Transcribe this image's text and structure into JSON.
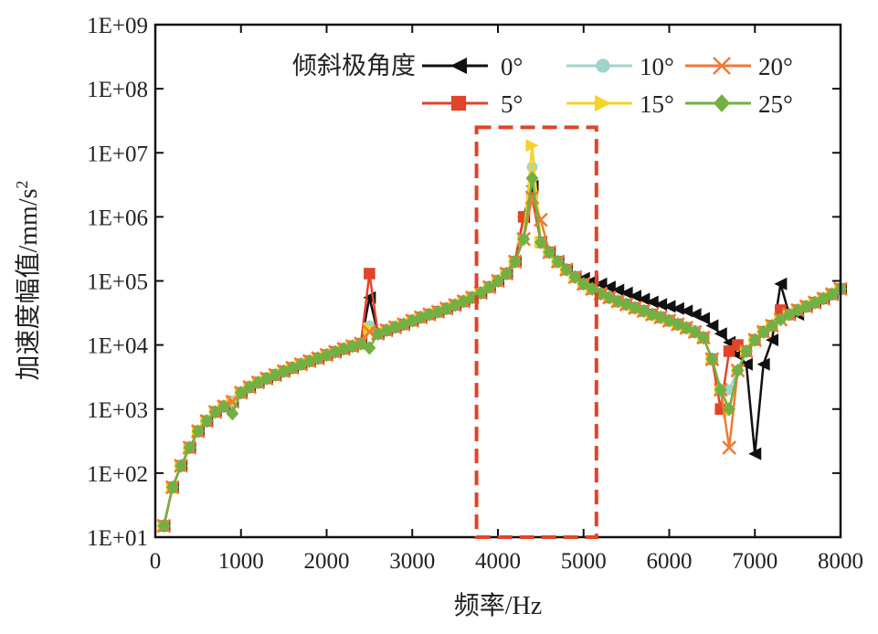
{
  "chart_data": {
    "type": "line",
    "xlabel": "频率/Hz",
    "ylabel": "加速度幅值/mm/s",
    "ylabel_sup": "2",
    "xlim": [
      0,
      8000
    ],
    "ylim": [
      10,
      1000000000
    ],
    "yscale": "log",
    "xticks": [
      "0",
      "1000",
      "2000",
      "3000",
      "4000",
      "5000",
      "6000",
      "7000",
      "8000"
    ],
    "xtick_values": [
      0,
      1000,
      2000,
      3000,
      4000,
      5000,
      6000,
      7000,
      8000
    ],
    "yticks": [
      "1E+01",
      "1E+02",
      "1E+03",
      "1E+04",
      "1E+05",
      "1E+06",
      "1E+07",
      "1E+08",
      "1E+09"
    ],
    "legend_title": "倾斜极角度",
    "legend_position": "top-right",
    "x_start": 100,
    "x_step": 100,
    "base": [
      15,
      60,
      130,
      250,
      450,
      650,
      900,
      1100,
      1300,
      1800,
      2200,
      2600,
      3000,
      3400,
      3900,
      4400,
      5000,
      5600,
      6200,
      7000,
      7800,
      8700,
      9600,
      10500,
      11000,
      15000,
      17000,
      19000,
      21000,
      24000,
      27000,
      30000,
      33000,
      37000,
      42000,
      48000,
      55000,
      65000,
      80000,
      100000,
      130000,
      200000,
      450000,
      3000000,
      400000,
      280000,
      200000,
      150000,
      115000,
      90000,
      75000,
      63000,
      55000,
      48000,
      43000,
      38000,
      34000,
      30000,
      27000,
      24000,
      21000,
      18500,
      16000,
      13000,
      6000,
      2000,
      1000,
      4000,
      8000,
      12000,
      16000,
      20000,
      25000,
      30000,
      35000,
      40000,
      46000,
      53000,
      62000,
      75000
    ],
    "series": [
      {
        "name": "0°",
        "color": "#111111",
        "marker": "triangle-left",
        "overrides": {
          "2500": 55000,
          "4300": 1000000,
          "4400": 3000000,
          "5000": 110000,
          "5100": 100000,
          "5200": 90000,
          "5300": 80000,
          "5400": 72000,
          "5500": 65000,
          "5600": 58000,
          "5700": 52000,
          "5800": 47000,
          "5900": 43000,
          "6000": 40000,
          "6100": 37000,
          "6200": 34000,
          "6300": 30000,
          "6400": 26000,
          "6500": 20000,
          "6600": 15000,
          "6700": 11000,
          "6800": 7000,
          "6900": 5000,
          "7000": 200,
          "7100": 5000,
          "7200": 12000,
          "7300": 90000,
          "7400": 30000,
          "7500": 30000
        }
      },
      {
        "name": "5°",
        "color": "#e0442a",
        "marker": "square",
        "overrides": {
          "2500": 130000,
          "4300": 1000000,
          "4400": 2000000,
          "6600": 1000,
          "6700": 8000,
          "6800": 10000,
          "7300": 35000
        }
      },
      {
        "name": "10°",
        "color": "#9fd3cc",
        "marker": "circle",
        "overrides": {
          "2500": 20000,
          "4400": 6000000,
          "6300": 17000,
          "6700": 2000
        }
      },
      {
        "name": "15°",
        "color": "#f5d327",
        "marker": "triangle-right",
        "overrides": {
          "2500": 18000,
          "4400": 13000000,
          "6700": 900
        }
      },
      {
        "name": "20°",
        "color": "#ee7a35",
        "marker": "x",
        "overrides": {
          "2500": 16000,
          "4400": 2000000,
          "4500": 900000,
          "6700": 250
        }
      },
      {
        "name": "25°",
        "color": "#72b043",
        "marker": "diamond",
        "overrides": {
          "900": 850,
          "2500": 9000,
          "4400": 4000000
        }
      }
    ],
    "highlight_box": {
      "x": [
        3750,
        5150
      ],
      "y": [
        10,
        25000000
      ],
      "color": "#e0442a",
      "style": "dashed"
    }
  }
}
